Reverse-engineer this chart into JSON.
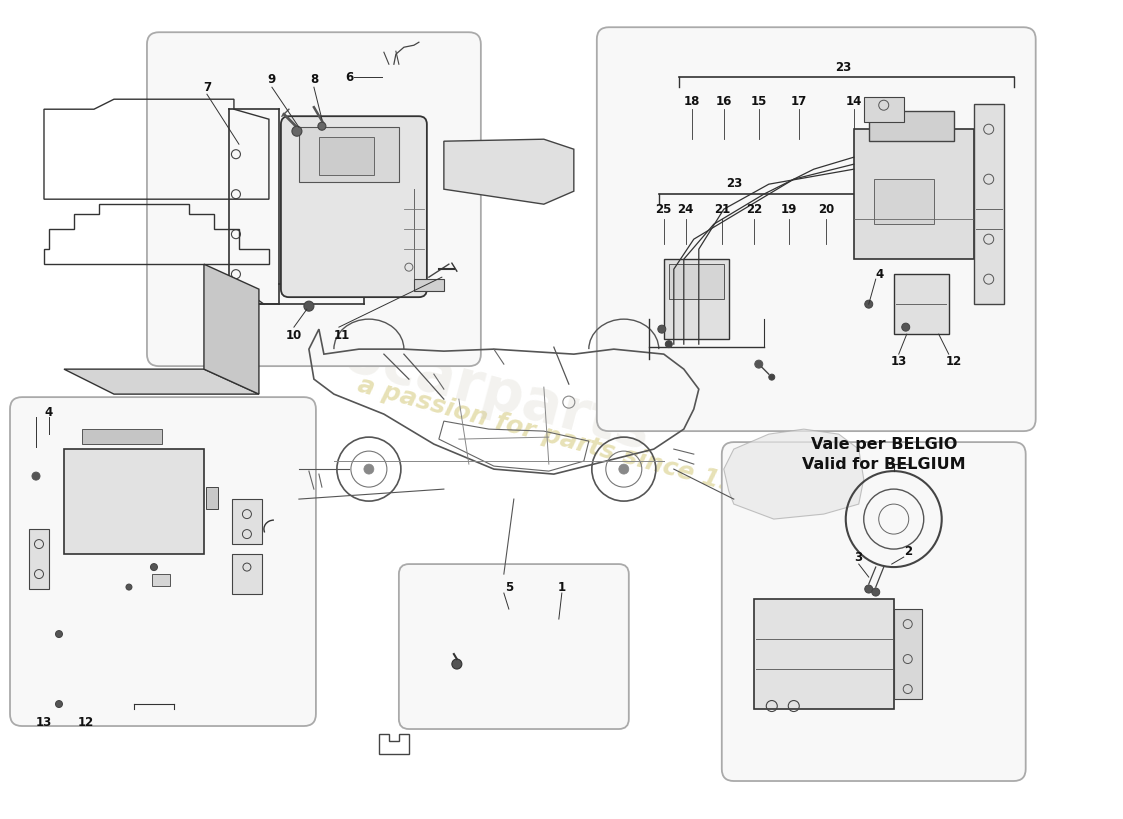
{
  "bg": "#ffffff",
  "watermark1": "a passion for parts since 1982",
  "watermark2": "eurocarparts",
  "belgio1": "Vale per BELGIO",
  "belgio2": "Valid for BELGIUM",
  "fig_w": 11.0,
  "fig_h": 8.0
}
